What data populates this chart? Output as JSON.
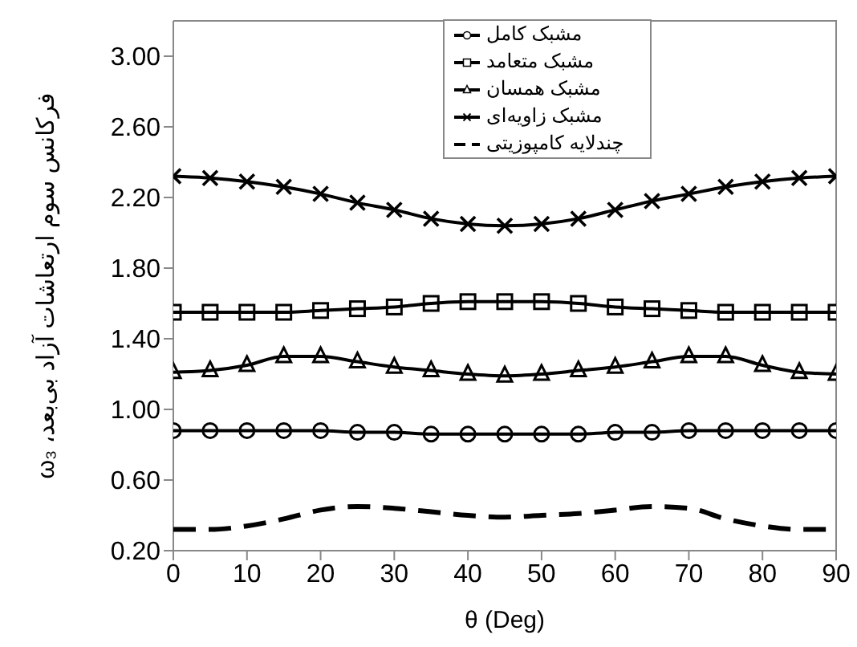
{
  "chart_data": {
    "type": "line",
    "xlabel": "θ (Deg)",
    "ylabel": "فرکانس سوم ارتعاشات آزاد بی‌بعد، ω₃",
    "x": [
      0,
      5,
      10,
      15,
      20,
      25,
      30,
      35,
      40,
      45,
      50,
      55,
      60,
      65,
      70,
      75,
      80,
      85,
      90
    ],
    "xlim": [
      0,
      90
    ],
    "xticks": [
      0,
      10,
      20,
      30,
      40,
      50,
      60,
      70,
      80,
      90
    ],
    "ylim": [
      0.2,
      3.2
    ],
    "yticks": [
      {
        "value": 0.2,
        "label": "0.20"
      },
      {
        "value": 0.6,
        "label": "0.60"
      },
      {
        "value": 1.0,
        "label": "1.00"
      },
      {
        "value": 1.4,
        "label": "1.40"
      },
      {
        "value": 1.8,
        "label": "1.80"
      },
      {
        "value": 2.2,
        "label": "2.20"
      },
      {
        "value": 2.6,
        "label": "2.60"
      },
      {
        "value": 3.0,
        "label": "3.00"
      }
    ],
    "grid": false,
    "legend": "top right",
    "series": [
      {
        "name": "مشبک کامل",
        "color": "#000000",
        "marker": "circle",
        "line_style": "solid",
        "values": [
          0.88,
          0.88,
          0.88,
          0.88,
          0.88,
          0.87,
          0.87,
          0.86,
          0.86,
          0.86,
          0.86,
          0.86,
          0.87,
          0.87,
          0.88,
          0.88,
          0.88,
          0.88,
          0.88
        ]
      },
      {
        "name": "مشبک متعامد",
        "color": "#000000",
        "marker": "square",
        "line_style": "solid",
        "values": [
          1.55,
          1.55,
          1.55,
          1.55,
          1.56,
          1.57,
          1.58,
          1.6,
          1.61,
          1.61,
          1.61,
          1.6,
          1.58,
          1.57,
          1.56,
          1.55,
          1.55,
          1.55,
          1.55
        ]
      },
      {
        "name": "مشبک همسان",
        "color": "#000000",
        "marker": "triangle",
        "line_style": "solid",
        "values": [
          1.21,
          1.22,
          1.25,
          1.3,
          1.3,
          1.27,
          1.24,
          1.22,
          1.2,
          1.19,
          1.2,
          1.22,
          1.24,
          1.27,
          1.3,
          1.3,
          1.25,
          1.21,
          1.2
        ]
      },
      {
        "name": "مشبک زاویه‌ای",
        "color": "#000000",
        "marker": "cross",
        "line_style": "solid",
        "values": [
          2.32,
          2.31,
          2.29,
          2.26,
          2.22,
          2.17,
          2.13,
          2.08,
          2.05,
          2.04,
          2.05,
          2.08,
          2.13,
          2.18,
          2.22,
          2.26,
          2.29,
          2.31,
          2.32
        ]
      },
      {
        "name": "چندلایه کامپوزیتی",
        "color": "#000000",
        "marker": "none",
        "line_style": "dashed",
        "values": [
          0.32,
          0.32,
          0.34,
          0.38,
          0.43,
          0.45,
          0.44,
          0.42,
          0.4,
          0.39,
          0.4,
          0.41,
          0.43,
          0.45,
          0.44,
          0.38,
          0.34,
          0.32,
          0.32
        ]
      }
    ]
  }
}
